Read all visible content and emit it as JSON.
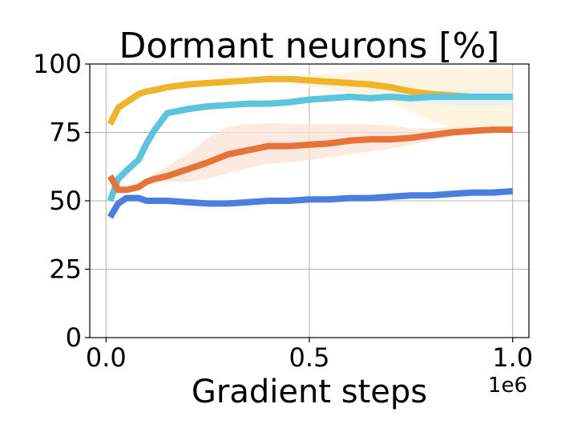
{
  "chart_data": {
    "type": "line",
    "title": "Dormant neurons [%]",
    "xlabel": "Gradient steps",
    "ylabel": "",
    "x_offset_label": "1e6",
    "xlim": [
      -0.04,
      1.04
    ],
    "ylim": [
      0,
      100
    ],
    "xticks": [
      0.0,
      0.5,
      1.0
    ],
    "xtick_labels": [
      "0.0",
      "0.5",
      "1.0"
    ],
    "yticks": [
      0,
      25,
      50,
      75,
      100
    ],
    "ytick_labels": [
      "0",
      "25",
      "50",
      "75",
      "100"
    ],
    "grid": true,
    "x": [
      0.01,
      0.03,
      0.05,
      0.08,
      0.1,
      0.12,
      0.15,
      0.2,
      0.25,
      0.3,
      0.35,
      0.4,
      0.45,
      0.5,
      0.55,
      0.6,
      0.65,
      0.7,
      0.75,
      0.8,
      0.85,
      0.9,
      0.95,
      1.0
    ],
    "series": [
      {
        "color": "#f0b429",
        "band_color": "#fdf0d5",
        "values": [
          78,
          84,
          86,
          89,
          90,
          90.5,
          91.5,
          92.5,
          93,
          93.5,
          94,
          94.5,
          94.5,
          94,
          93.5,
          93,
          92.5,
          91.5,
          90,
          89,
          88.5,
          88,
          88,
          88
        ],
        "lower": [
          78,
          84,
          86,
          89,
          90,
          90.5,
          91.5,
          92.5,
          93,
          93.5,
          94,
          94,
          93.5,
          92,
          91,
          89.5,
          88.5,
          86,
          83,
          79,
          77,
          76.5,
          77,
          77
        ],
        "upper": [
          78,
          84,
          86,
          89,
          90,
          90.5,
          91.5,
          92.5,
          93,
          93.5,
          94,
          95,
          95.5,
          96,
          96.5,
          97,
          98,
          98.5,
          98.5,
          98.5,
          98.5,
          98.5,
          98.5,
          98.5
        ]
      },
      {
        "color": "#5bc4de",
        "band_color": "#ddf2f8",
        "values": [
          50,
          58,
          61,
          65,
          71,
          76,
          82,
          83.5,
          84.5,
          85,
          85.5,
          85.5,
          86,
          87,
          87.5,
          88,
          87.5,
          88,
          87.5,
          88,
          88,
          88,
          88,
          88
        ],
        "lower": [
          50,
          58,
          61,
          65,
          71,
          76,
          82,
          83.5,
          84.5,
          85,
          85.5,
          85.5,
          86,
          86.5,
          87,
          87.5,
          87,
          87,
          86,
          85.5,
          85,
          85,
          85,
          85
        ],
        "upper": [
          50,
          58,
          61,
          65,
          71,
          76,
          82,
          83.5,
          84.5,
          85,
          85.5,
          85.5,
          86,
          87.5,
          88,
          88.5,
          89,
          89.5,
          90,
          90.5,
          90.5,
          90.5,
          90.5,
          90.5
        ]
      },
      {
        "color": "#e8733a",
        "band_color": "#fbe3d6",
        "values": [
          59,
          54,
          54,
          55,
          57,
          58,
          59,
          61.5,
          64,
          67,
          68.5,
          70,
          70,
          70.5,
          71,
          72,
          72.5,
          72.5,
          73,
          74,
          75,
          75.5,
          76,
          76
        ],
        "lower": [
          59,
          54,
          54,
          54.5,
          56,
          56.5,
          57,
          57,
          58,
          60,
          62,
          63.5,
          64,
          65,
          66,
          67,
          68,
          69,
          70.5,
          72,
          73.5,
          74.5,
          75.5,
          75.5
        ],
        "upper": [
          59,
          54,
          54,
          55.5,
          58,
          60,
          62.5,
          67,
          73,
          77,
          78,
          78.5,
          78,
          78,
          78,
          78,
          78,
          77.5,
          76.5,
          76.5,
          77,
          77,
          77,
          77
        ]
      },
      {
        "color": "#4a7fde",
        "band_color": "#dce6f8",
        "values": [
          44,
          49,
          51,
          51,
          50,
          50,
          50,
          49.5,
          49,
          49,
          49.5,
          50,
          50,
          50.5,
          50.5,
          51,
          51,
          51.5,
          52,
          52,
          52.5,
          53,
          53,
          53.5
        ],
        "lower": [
          44,
          49,
          51,
          50.5,
          49.5,
          49.5,
          49.5,
          49,
          48.5,
          48.5,
          49,
          49.5,
          49.5,
          50,
          50,
          50.5,
          50.5,
          51,
          51.5,
          51.5,
          52,
          52.5,
          52.5,
          53
        ],
        "upper": [
          44,
          49,
          51,
          51.5,
          50.5,
          50.5,
          50.5,
          50,
          49.5,
          49.5,
          50,
          50.5,
          50.5,
          51,
          51,
          51.5,
          51.5,
          52,
          52.5,
          52.5,
          53,
          53.5,
          53.5,
          54
        ]
      }
    ]
  }
}
